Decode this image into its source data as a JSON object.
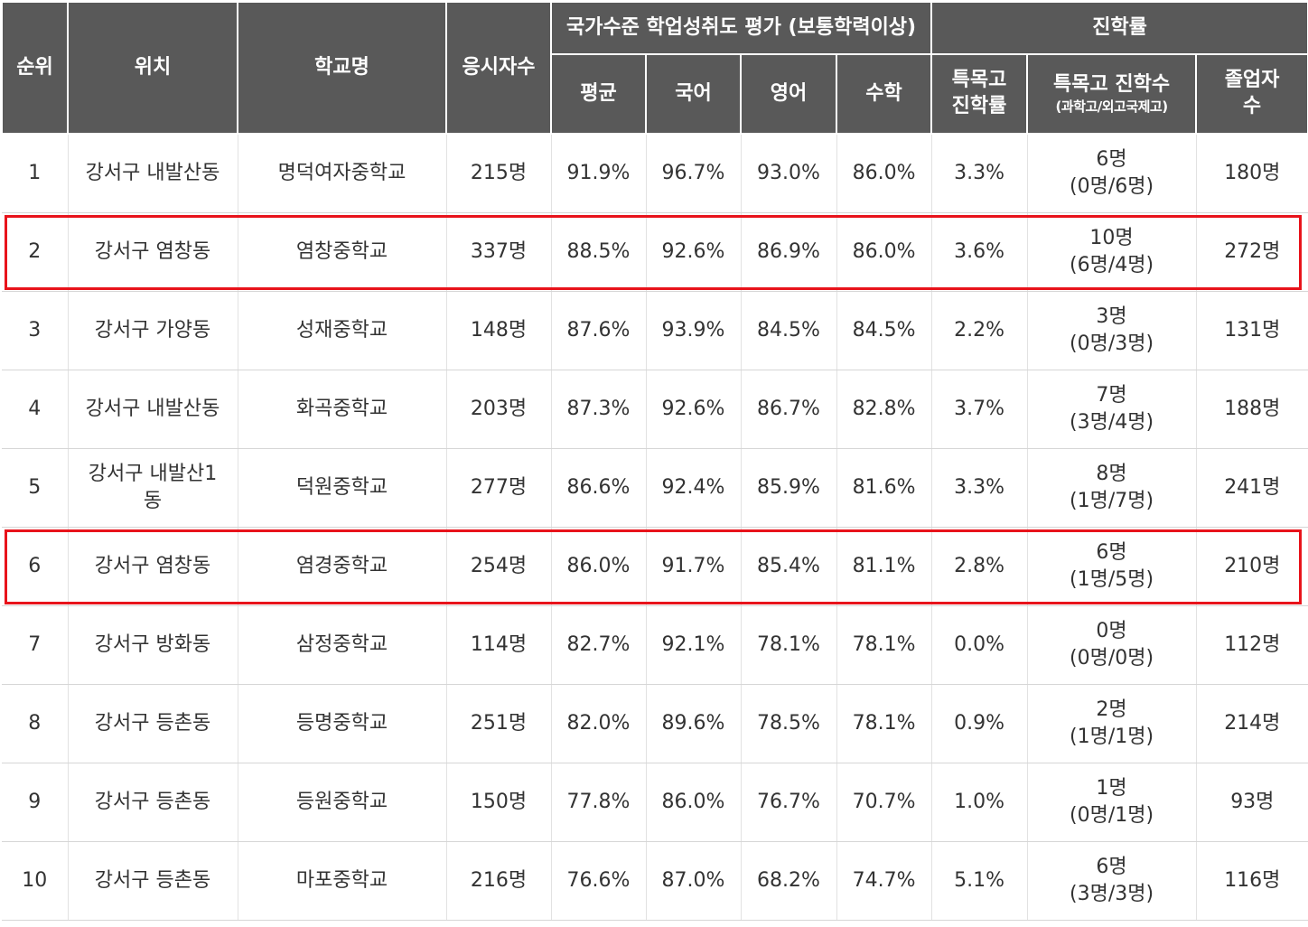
{
  "table": {
    "headers": {
      "rank": "순위",
      "location": "위치",
      "school": "학교명",
      "examinees": "응시자수",
      "assessment_group": "국가수준 학업성취도 평가 (보통학력이상)",
      "advancement_group": "진학률",
      "average": "평균",
      "korean": "국어",
      "english": "영어",
      "math": "수학",
      "special_rate_line1": "특목고",
      "special_rate_line2": "진학률",
      "special_count_line1": "특목고 진학수",
      "special_count_line2": "(과학고/외고국제고)",
      "graduates_line1": "졸업자",
      "graduates_line2": "수"
    },
    "rows": [
      {
        "rank": "1",
        "location": "강서구 내발산동",
        "school": "명덕여자중학교",
        "examinees": "215명",
        "average": "91.9%",
        "korean": "96.7%",
        "english": "93.0%",
        "math": "86.0%",
        "special_rate": "3.3%",
        "special_count": "6명",
        "special_detail": "(0명/6명)",
        "graduates": "180명"
      },
      {
        "rank": "2",
        "location": "강서구 염창동",
        "school": "염창중학교",
        "examinees": "337명",
        "average": "88.5%",
        "korean": "92.6%",
        "english": "86.9%",
        "math": "86.0%",
        "special_rate": "3.6%",
        "special_count": "10명",
        "special_detail": "(6명/4명)",
        "graduates": "272명"
      },
      {
        "rank": "3",
        "location": "강서구 가양동",
        "school": "성재중학교",
        "examinees": "148명",
        "average": "87.6%",
        "korean": "93.9%",
        "english": "84.5%",
        "math": "84.5%",
        "special_rate": "2.2%",
        "special_count": "3명",
        "special_detail": "(0명/3명)",
        "graduates": "131명"
      },
      {
        "rank": "4",
        "location": "강서구 내발산동",
        "school": "화곡중학교",
        "examinees": "203명",
        "average": "87.3%",
        "korean": "92.6%",
        "english": "86.7%",
        "math": "82.8%",
        "special_rate": "3.7%",
        "special_count": "7명",
        "special_detail": "(3명/4명)",
        "graduates": "188명"
      },
      {
        "rank": "5",
        "location": "강서구 내발산1동",
        "school": "덕원중학교",
        "examinees": "277명",
        "average": "86.6%",
        "korean": "92.4%",
        "english": "85.9%",
        "math": "81.6%",
        "special_rate": "3.3%",
        "special_count": "8명",
        "special_detail": "(1명/7명)",
        "graduates": "241명"
      },
      {
        "rank": "6",
        "location": "강서구 염창동",
        "school": "염경중학교",
        "examinees": "254명",
        "average": "86.0%",
        "korean": "91.7%",
        "english": "85.4%",
        "math": "81.1%",
        "special_rate": "2.8%",
        "special_count": "6명",
        "special_detail": "(1명/5명)",
        "graduates": "210명"
      },
      {
        "rank": "7",
        "location": "강서구 방화동",
        "school": "삼정중학교",
        "examinees": "114명",
        "average": "82.7%",
        "korean": "92.1%",
        "english": "78.1%",
        "math": "78.1%",
        "special_rate": "0.0%",
        "special_count": "0명",
        "special_detail": "(0명/0명)",
        "graduates": "112명"
      },
      {
        "rank": "8",
        "location": "강서구 등촌동",
        "school": "등명중학교",
        "examinees": "251명",
        "average": "82.0%",
        "korean": "89.6%",
        "english": "78.5%",
        "math": "78.1%",
        "special_rate": "0.9%",
        "special_count": "2명",
        "special_detail": "(1명/1명)",
        "graduates": "214명"
      },
      {
        "rank": "9",
        "location": "강서구 등촌동",
        "school": "등원중학교",
        "examinees": "150명",
        "average": "77.8%",
        "korean": "86.0%",
        "english": "76.7%",
        "math": "70.7%",
        "special_rate": "1.0%",
        "special_count": "1명",
        "special_detail": "(0명/1명)",
        "graduates": "93명"
      },
      {
        "rank": "10",
        "location": "강서구 등촌동",
        "school": "마포중학교",
        "examinees": "216명",
        "average": "76.6%",
        "korean": "87.0%",
        "english": "68.2%",
        "math": "74.7%",
        "special_rate": "5.1%",
        "special_count": "6명",
        "special_detail": "(3명/3명)",
        "graduates": "116명"
      }
    ],
    "highlighted_ranks": [
      "2",
      "6"
    ],
    "highlight_color": "#e8131b",
    "header_bg_color": "#595959"
  }
}
